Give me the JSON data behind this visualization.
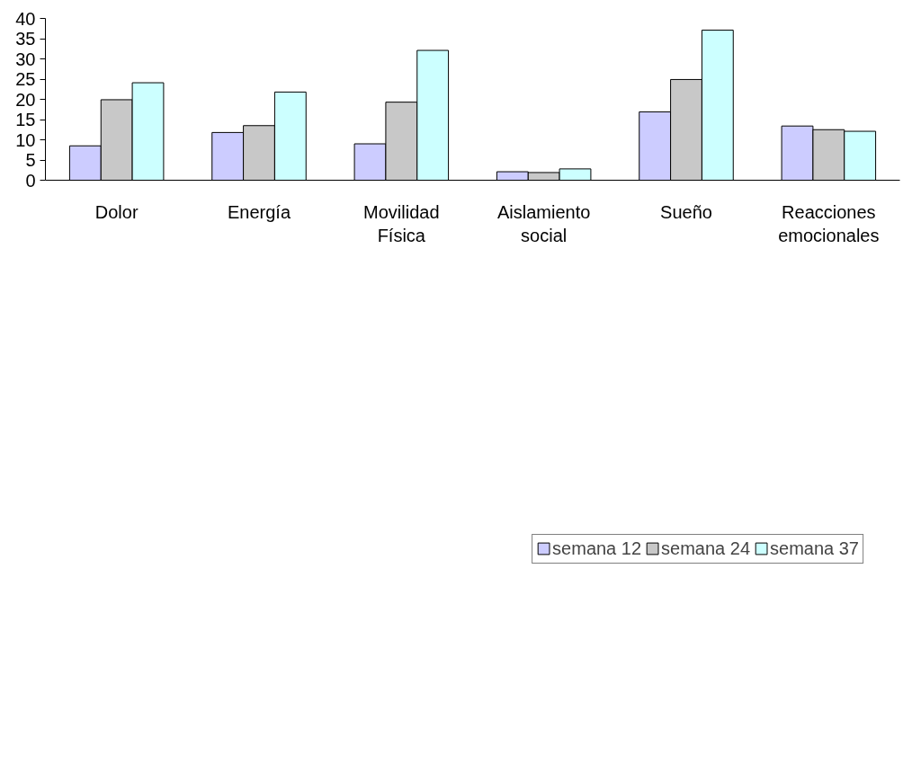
{
  "chart_data": {
    "type": "bar",
    "categories": [
      "Dolor",
      "Energía",
      "Movilidad Física",
      "Aislamiento social",
      "Sueño",
      "Reacciones emocionales"
    ],
    "series": [
      {
        "name": "semana 12",
        "color": "#ccccff",
        "values": [
          8.5,
          11.8,
          9.0,
          2.1,
          16.9,
          13.4
        ]
      },
      {
        "name": "semana 24",
        "color": "#c8c8c8",
        "values": [
          19.9,
          13.5,
          19.3,
          1.9,
          24.9,
          12.5
        ]
      },
      {
        "name": "semana 37",
        "color": "#ccffff",
        "values": [
          24.1,
          21.8,
          32.1,
          2.8,
          37.1,
          12.1
        ]
      }
    ],
    "ylim": [
      0,
      40
    ],
    "yticks": [
      0,
      5,
      10,
      15,
      20,
      25,
      30,
      35,
      40
    ],
    "grid": false,
    "legend": "bottom"
  }
}
